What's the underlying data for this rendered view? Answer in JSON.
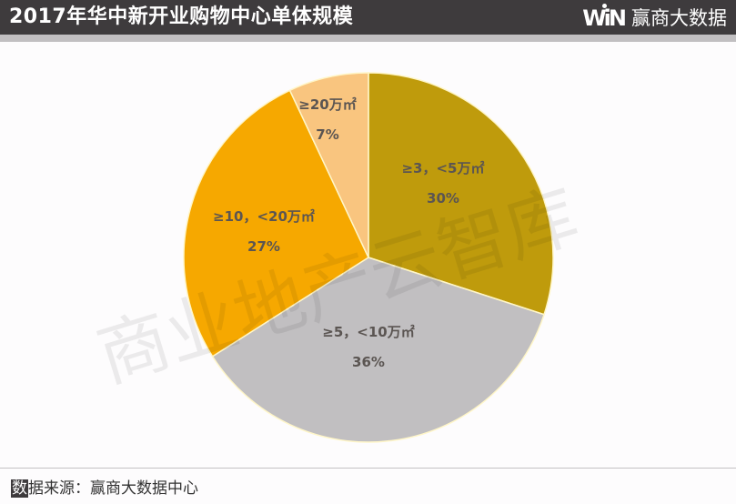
{
  "header": {
    "title": "2017年华中新开业购物中心单体规模",
    "logo_mark": "WiN",
    "logo_text": "赢商大数据",
    "background_color": "#3e3b3d"
  },
  "watermark": {
    "text": "商业地产云智库"
  },
  "footer": {
    "source_highlight": "数",
    "source_rest": "据来源：赢商大数据中心"
  },
  "chart_data": {
    "type": "pie",
    "title": "2017年华中新开业购物中心单体规模",
    "start_angle": "12 o'clock, clockwise",
    "categories": [
      "≥3，<5万㎡",
      "≥5，<10万㎡",
      "≥10，<20万㎡",
      "≥20万㎡"
    ],
    "values": [
      30,
      36,
      27,
      7
    ],
    "unit": "%",
    "colors": [
      "#bf9b0c",
      "#c1bfc1",
      "#f6a800",
      "#f9c57f"
    ],
    "labels": [
      {
        "name": "≥3，<5万㎡",
        "value": "30%"
      },
      {
        "name": "≥5，<10万㎡",
        "value": "36%"
      },
      {
        "name": "≥10，<20万㎡",
        "value": "27%"
      },
      {
        "name": "≥20万㎡",
        "value": "7%"
      }
    ],
    "legend": "none (labels inside slices)",
    "source": "数据来源：赢商大数据中心"
  }
}
